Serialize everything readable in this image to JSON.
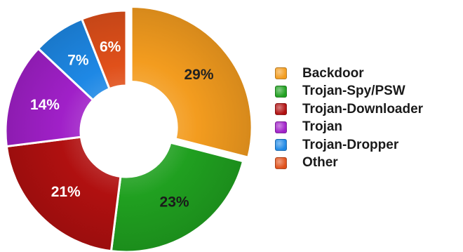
{
  "chart_data": {
    "type": "pie",
    "variant": "donut",
    "legend_position": "right",
    "slices": [
      {
        "label": "Backdoor",
        "value": 29,
        "display": "29%",
        "color": "#f39c1f",
        "label_color": "#222222"
      },
      {
        "label": "Trojan-Spy/PSW",
        "value": 23,
        "display": "23%",
        "color": "#20a020",
        "label_color": "#1a1a1a"
      },
      {
        "label": "Trojan-Downloader",
        "value": 21,
        "display": "21%",
        "color": "#b01010",
        "label_color": "#ffffff"
      },
      {
        "label": "Trojan",
        "value": 14,
        "display": "14%",
        "color": "#a020c8",
        "label_color": "#ffffff"
      },
      {
        "label": "Trojan-Dropper",
        "value": 7,
        "display": "7%",
        "color": "#1e88e5",
        "label_color": "#ffffff"
      },
      {
        "label": "Other",
        "value": 6,
        "display": "6%",
        "color": "#e0501a",
        "label_color": "#ffffff"
      }
    ]
  }
}
